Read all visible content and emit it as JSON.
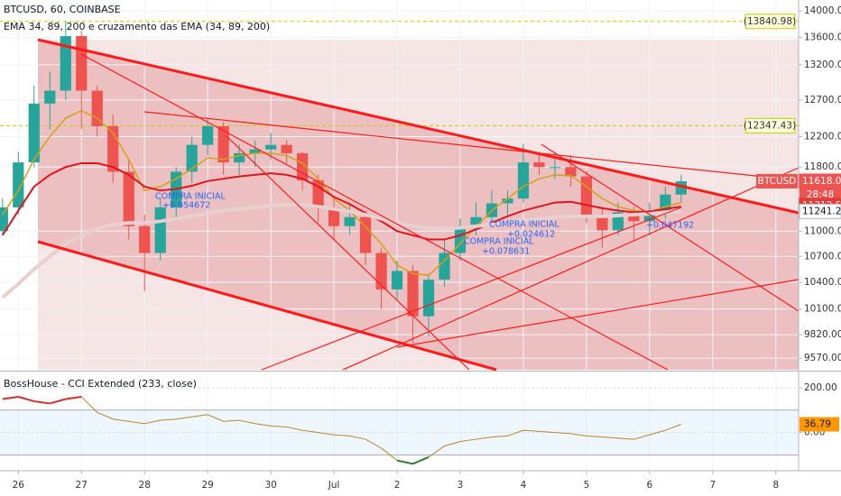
{
  "chart_data": [
    {
      "type": "candlestick",
      "title": "BTCUSD, 60, COINBASE",
      "subtitle": "EMA 34, 89, 200 e cruzamento das EMA (34, 89, 200)",
      "x": [
        -0.25,
        0,
        0.25,
        0.5,
        0.75,
        1,
        1.25,
        1.5,
        1.75,
        2,
        2.25,
        2.5,
        2.75,
        3,
        3.25,
        3.5,
        3.75,
        4,
        4.25,
        4.5,
        4.75,
        5,
        5.25,
        5.5,
        5.75,
        6,
        6.25,
        6.5,
        6.75,
        7,
        7.25,
        7.5,
        7.75,
        8,
        8.25,
        8.5,
        8.75,
        9,
        9.25,
        9.5,
        9.75,
        10,
        10.25,
        10.5
      ],
      "open": [
        11000,
        11290,
        11860,
        12650,
        12830,
        13620,
        12830,
        12340,
        11740,
        11060,
        10740,
        11290,
        11740,
        12090,
        12340,
        11860,
        11980,
        12030,
        12090,
        11980,
        11630,
        11290,
        11060,
        11170,
        10740,
        10320,
        10530,
        10020,
        10430,
        10740,
        11060,
        11170,
        11340,
        11400,
        11860,
        11800,
        11800,
        11680,
        11170,
        11010,
        11230,
        11120,
        11230,
        11450
      ],
      "high": [
        11400,
        12000,
        12900,
        13100,
        13840,
        13700,
        12900,
        12500,
        11900,
        11200,
        11400,
        11800,
        12200,
        12450,
        12400,
        12100,
        12150,
        12250,
        12150,
        12000,
        11700,
        11400,
        11350,
        11250,
        10800,
        10650,
        10600,
        10500,
        10900,
        11150,
        11350,
        11500,
        11500,
        12100,
        12000,
        12000,
        11950,
        11750,
        11300,
        11350,
        11300,
        11350,
        11550,
        11700
      ],
      "low": [
        10950,
        11200,
        11800,
        12300,
        12700,
        12300,
        12200,
        11600,
        10900,
        10300,
        10650,
        11150,
        11600,
        11950,
        11700,
        11700,
        11800,
        11900,
        11850,
        11500,
        11100,
        10900,
        10950,
        10600,
        10100,
        10200,
        9730,
        9800,
        10350,
        10650,
        10950,
        11050,
        11200,
        11350,
        11700,
        11650,
        11550,
        11100,
        10800,
        10950,
        10900,
        10950,
        11150,
        11350
      ],
      "close": [
        11290,
        11860,
        12650,
        12830,
        13620,
        12830,
        12340,
        11740,
        11060,
        10740,
        11290,
        11740,
        12090,
        12340,
        11860,
        11980,
        12030,
        12090,
        11980,
        11630,
        11290,
        11060,
        11170,
        10740,
        10320,
        10530,
        10020,
        10430,
        10740,
        11060,
        11170,
        11340,
        11400,
        11860,
        11800,
        11800,
        11680,
        11170,
        11010,
        11230,
        11120,
        11230,
        11450,
        11618
      ],
      "up_color": "#26a69a",
      "down_color": "#ef5350",
      "series": [
        {
          "color": "#d4a017",
          "line_width": 1.5,
          "values": [
            11200,
            11500,
            11900,
            12200,
            12450,
            12550,
            12450,
            12250,
            11900,
            11500,
            11550,
            11650,
            11780,
            11920,
            11900,
            11950,
            11980,
            11980,
            11950,
            11850,
            11650,
            11400,
            11250,
            11050,
            10850,
            10600,
            10500,
            10480,
            10650,
            10850,
            11050,
            11250,
            11400,
            11550,
            11650,
            11700,
            11690,
            11550,
            11400,
            11300,
            11250,
            11230,
            11300,
            11350
          ]
        },
        {
          "color": "#e0141e",
          "line_width": 2,
          "values": [
            10950,
            11250,
            11550,
            11700,
            11800,
            11850,
            11850,
            11800,
            11700,
            11550,
            11500,
            11520,
            11560,
            11620,
            11650,
            11680,
            11700,
            11720,
            11700,
            11650,
            11550,
            11420,
            11330,
            11220,
            11120,
            11000,
            10950,
            10900,
            10900,
            10950,
            11020,
            11100,
            11180,
            11250,
            11300,
            11350,
            11360,
            11320,
            11280,
            11250,
            11230,
            11240,
            11270,
            11300
          ]
        },
        {
          "color": "#e8d0d0",
          "line_width": 4,
          "values": [
            10230,
            10380,
            10550,
            10700,
            10850,
            10950,
            11030,
            11080,
            11100,
            11100,
            11120,
            11150,
            11180,
            11220,
            11250,
            11270,
            11290,
            11310,
            11320,
            11320,
            11300,
            11270,
            11240,
            11200,
            11150,
            11100,
            11060,
            11040,
            11030,
            11040,
            11060,
            11080,
            11100,
            11130,
            11150,
            11170,
            11180,
            11180,
            11180,
            11190,
            11200,
            11210,
            11230,
            11240
          ]
        }
      ],
      "log_scale": true,
      "grid": true,
      "ylim": [
        9450,
        14170
      ],
      "yticks": [
        {
          "value": 14000,
          "label": "14000.00"
        },
        {
          "value": 13600,
          "label": "13600.00"
        },
        {
          "value": 13200,
          "label": "13200.00"
        },
        {
          "value": 12700,
          "label": "12700.00"
        },
        {
          "value": 12200,
          "label": "12200.00"
        },
        {
          "value": 11800,
          "label": "11800.00"
        },
        {
          "value": 11000,
          "label": "11000.00"
        },
        {
          "value": 10700,
          "label": "10700.00"
        },
        {
          "value": 10400,
          "label": "10400.00"
        },
        {
          "value": 10100,
          "label": "10100.00"
        },
        {
          "value": 9820,
          "label": "9820.00"
        },
        {
          "value": 9570,
          "label": "9570.00"
        }
      ],
      "xlim": [
        -0.29,
        12.36
      ],
      "xticks": [
        {
          "value": 0,
          "label": "26"
        },
        {
          "value": 1,
          "label": "27"
        },
        {
          "value": 2,
          "label": "28"
        },
        {
          "value": 3,
          "label": "29"
        },
        {
          "value": 4,
          "label": "30"
        },
        {
          "value": 5,
          "label": "Jul"
        },
        {
          "value": 6,
          "label": "2"
        },
        {
          "value": 7,
          "label": "3"
        },
        {
          "value": 8,
          "label": "4"
        },
        {
          "value": 9,
          "label": "5"
        },
        {
          "value": 10,
          "label": "6"
        },
        {
          "value": 11,
          "label": "7"
        },
        {
          "value": 12,
          "label": "8"
        }
      ],
      "levels": [
        {
          "value": 13840.98,
          "label": "(13840.98)",
          "color": "#c8c800"
        },
        {
          "value": 12347.43,
          "label": "(12347.43)",
          "color": "#c8c800"
        }
      ],
      "price_tags": [
        {
          "value": 11618,
          "label": "11618.00",
          "color": "#ef5350",
          "text_color": "#ffffff",
          "name": "BTCUSD",
          "timer": "28:48"
        },
        {
          "value": 11312.56,
          "label": "11312.56",
          "color": "#e53935",
          "text_color": "#ffffff"
        },
        {
          "value": 11241.22,
          "label": "11241.22",
          "color": "#ffffff",
          "text_color": "#131722"
        }
      ],
      "annotations": [
        "COMPRA INICIAL",
        "+0.054672",
        "COMPRA INICIAL",
        "+0.024612",
        "COMPRA INICIAL",
        "+0.078631",
        "+0.047192"
      ],
      "annotation_color": "#2962ff"
    },
    {
      "type": "line",
      "title": "BossHouse - CCI Extended (233, close)",
      "x": [
        -0.25,
        0,
        0.25,
        0.5,
        0.75,
        1,
        1.25,
        1.5,
        1.75,
        2,
        2.25,
        2.5,
        2.75,
        3,
        3.25,
        3.5,
        3.75,
        4,
        4.25,
        4.5,
        4.75,
        5,
        5.25,
        5.5,
        5.75,
        6,
        6.25,
        6.5,
        6.75,
        7,
        7.25,
        7.5,
        7.75,
        8,
        8.25,
        8.5,
        8.75,
        9,
        9.25,
        9.5,
        9.75,
        10,
        10.25,
        10.5
      ],
      "values": [
        150,
        160,
        140,
        130,
        150,
        160,
        90,
        60,
        50,
        40,
        55,
        60,
        70,
        80,
        50,
        55,
        40,
        30,
        25,
        10,
        0,
        -10,
        -15,
        -30,
        -70,
        -125,
        -140,
        -110,
        -60,
        -40,
        -30,
        -20,
        -15,
        10,
        5,
        0,
        -5,
        -15,
        -20,
        -25,
        -30,
        -10,
        10,
        36.79
      ],
      "color": "#b8862b",
      "above_color": "#d32f2f",
      "below_color": "#2e7d32",
      "xlim": [
        -0.29,
        12.36
      ],
      "ylim": [
        -167,
        269
      ],
      "yticks": [
        {
          "value": 200,
          "label": "200.00"
        },
        {
          "value": 0,
          "label": "0.00"
        }
      ],
      "band": [
        -100,
        100
      ],
      "last_tag": {
        "value": 36.79,
        "label": "36.79",
        "color": "#ff9800"
      }
    }
  ]
}
